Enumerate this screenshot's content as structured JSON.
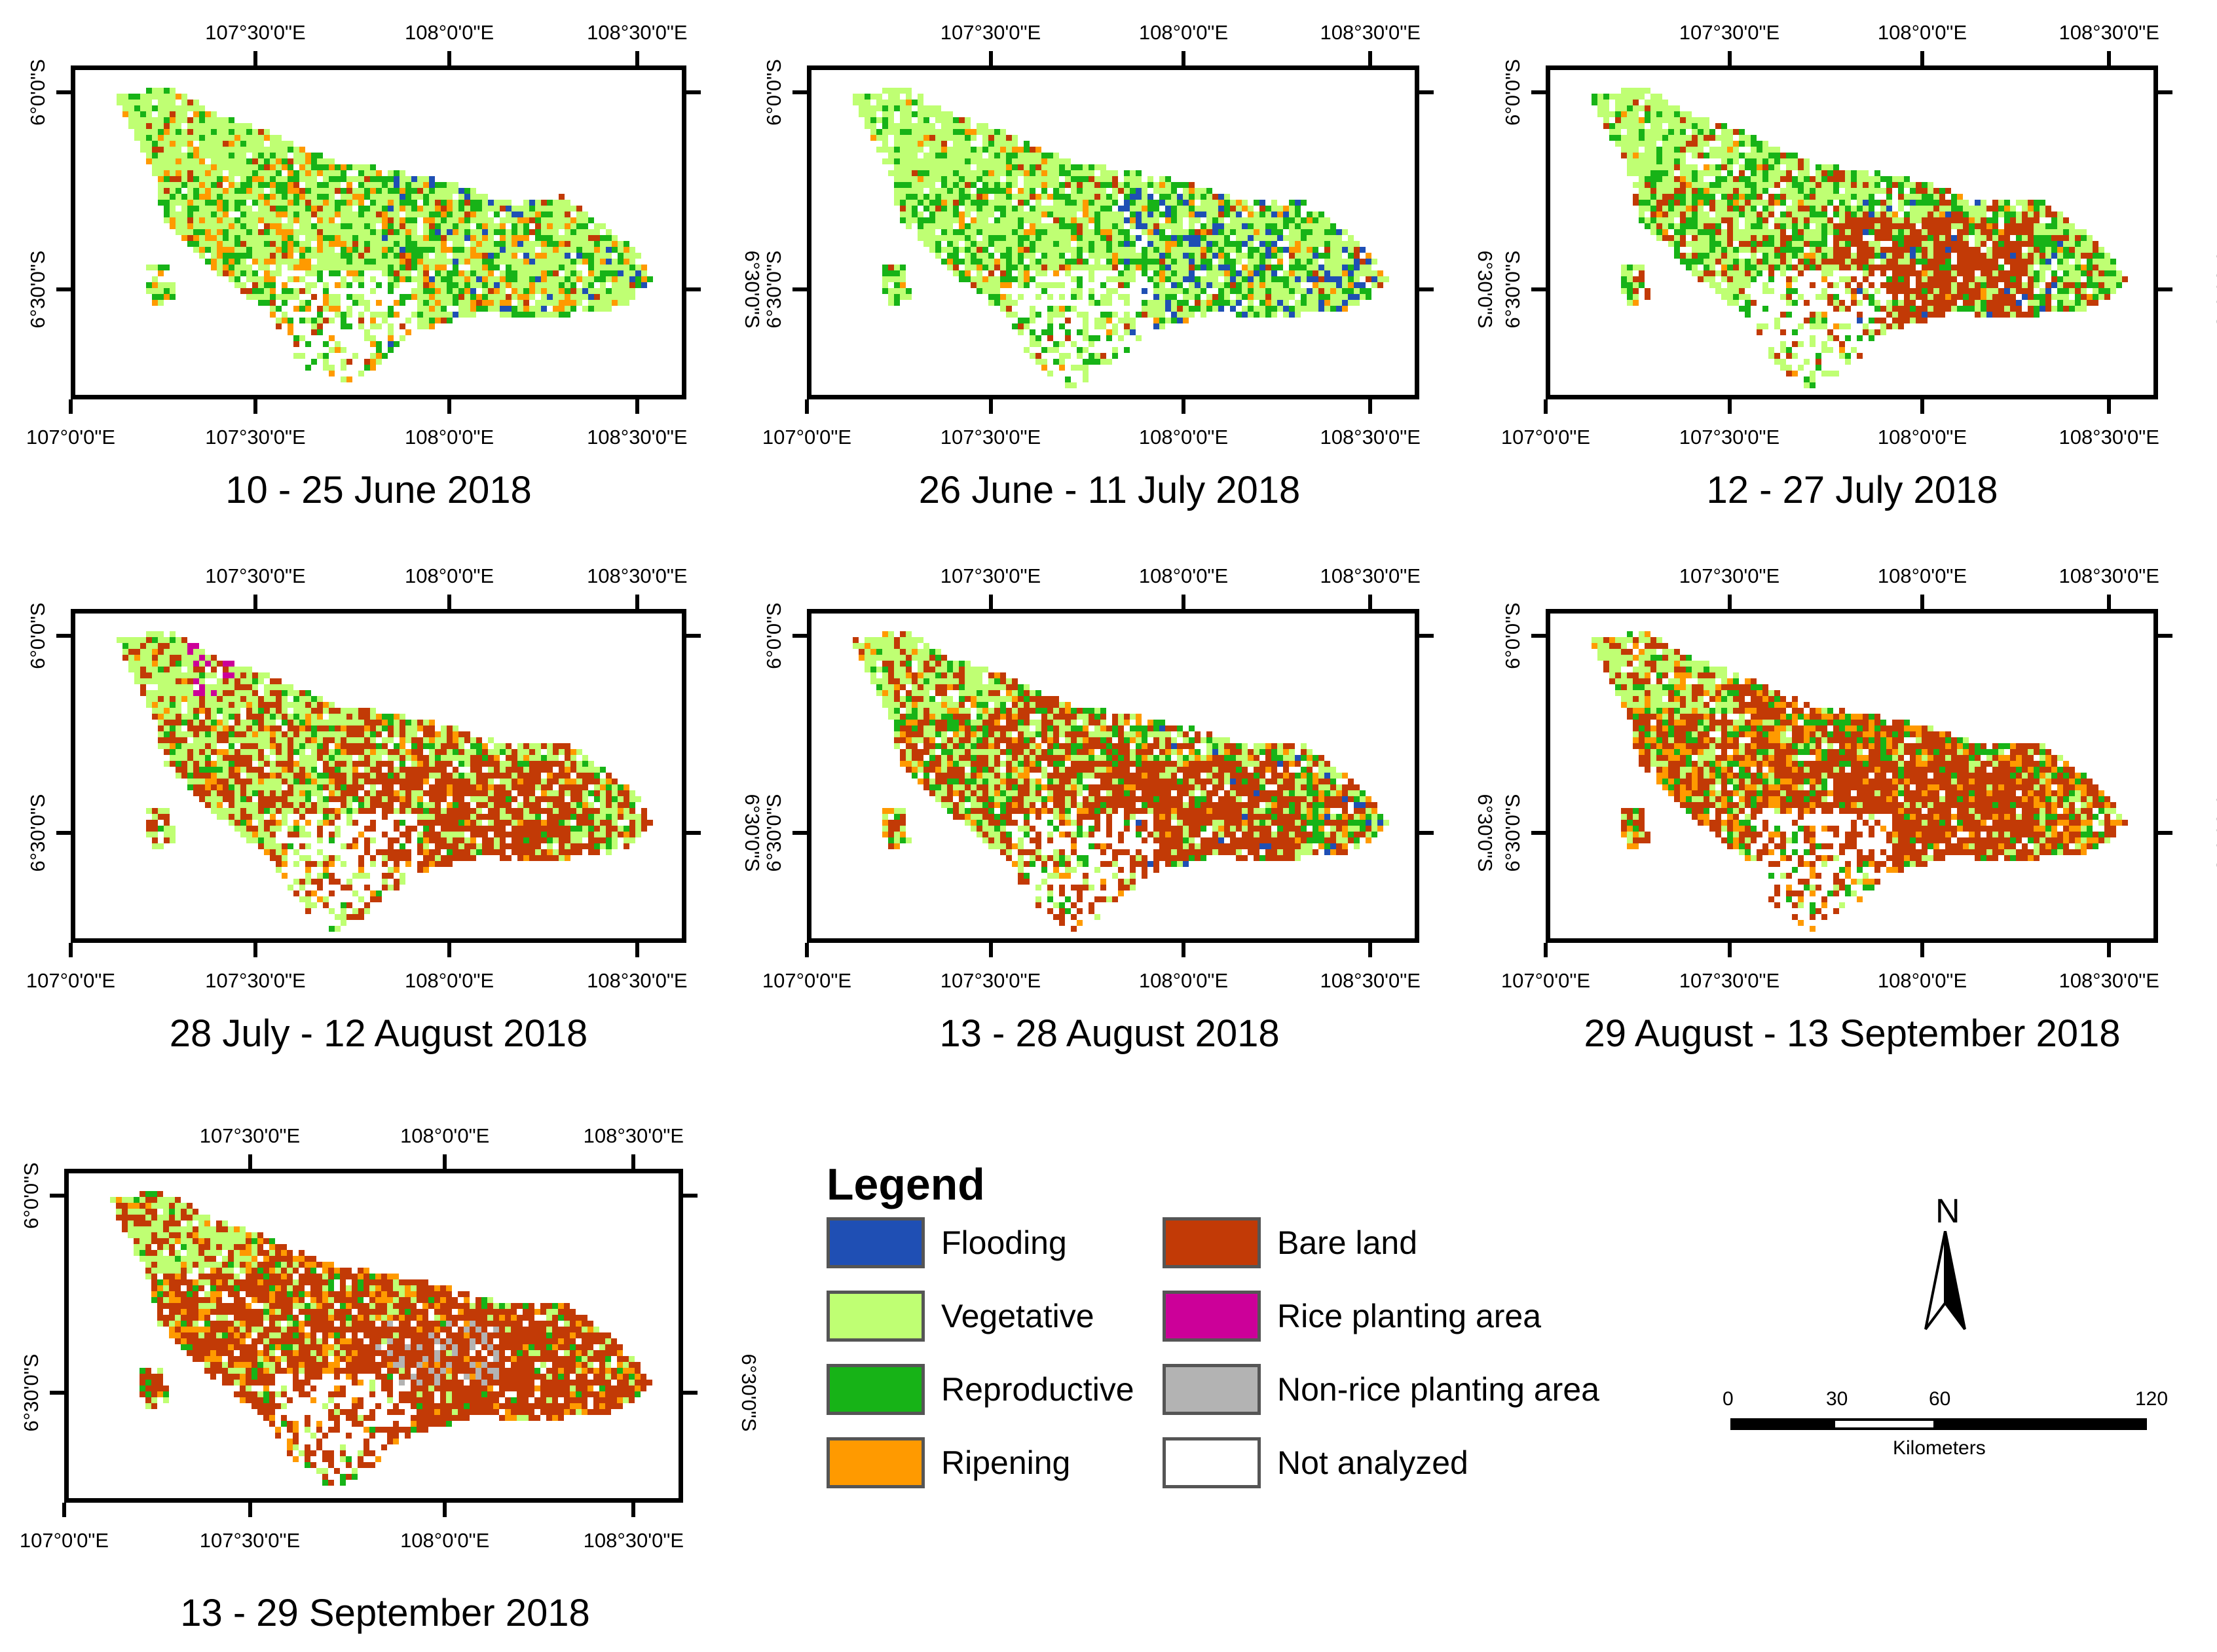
{
  "panels": [
    {
      "caption": "10 - 25 June 2018",
      "scheme": "june"
    },
    {
      "caption": "26 June - 11 July 2018",
      "scheme": "july1"
    },
    {
      "caption": "12 - 27 July 2018",
      "scheme": "july2"
    },
    {
      "caption": "28 July - 12 August 2018",
      "scheme": "aug1"
    },
    {
      "caption": "13 - 28 August 2018",
      "scheme": "aug2"
    },
    {
      "caption": "29 August - 13 September 2018",
      "scheme": "sep1"
    },
    {
      "caption": "13 - 29 September 2018",
      "scheme": "sep2"
    }
  ],
  "axes": {
    "top_ticks": [
      "107°30'0\"E",
      "108°0'0\"E",
      "108°30'0\"E"
    ],
    "bottom_ticks": [
      "107°0'0\"E",
      "107°30'0\"E",
      "108°0'0\"E",
      "108°30'0\"E"
    ],
    "left_ticks": [
      "6°0'0\"S",
      "6°30'0\"S"
    ],
    "right_ticks": [
      "6°0'0\"S",
      "6°30'0\"S"
    ]
  },
  "legend": {
    "title": "Legend",
    "items": [
      {
        "label": "Flooding",
        "color": "#1f4fb4"
      },
      {
        "label": "Vegetative",
        "color": "#bfff73"
      },
      {
        "label": "Reproductive",
        "color": "#17b317"
      },
      {
        "label": "Ripening",
        "color": "#ff9a00"
      },
      {
        "label": "Bare land",
        "color": "#c23a06"
      },
      {
        "label": "Rice planting area",
        "color": "#cc0099"
      },
      {
        "label": "Non-rice planting area",
        "color": "#b3b3b3"
      },
      {
        "label": "Not analyzed",
        "color": "#ffffff"
      }
    ]
  },
  "north_arrow": {
    "label": "N"
  },
  "scale_bar": {
    "ticks": [
      "0",
      "30",
      "60",
      "120"
    ],
    "unit": "Kilometers"
  },
  "colors": {
    "flooding": "#1f4fb4",
    "vegetative": "#bfff73",
    "reproductive": "#17b317",
    "ripening": "#ff9a00",
    "bare": "#c23a06",
    "rice_planting": "#cc0099",
    "non_rice": "#b3b3b3"
  }
}
